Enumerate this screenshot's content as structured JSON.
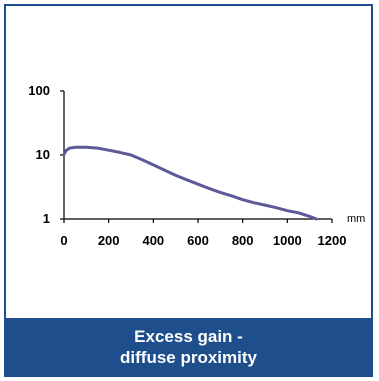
{
  "caption": {
    "line1": "Excess gain -",
    "line2": "diffuse proximity"
  },
  "colors": {
    "border": "#1f4e8c",
    "caption_bg": "#1f4e8c",
    "curve": "#5c5a99"
  },
  "chart_data": {
    "type": "line",
    "title": "",
    "xlabel": "mm",
    "ylabel": "",
    "xlim": [
      0,
      1200
    ],
    "ylim": [
      1,
      100
    ],
    "y_scale": "log",
    "grid": false,
    "x_ticks": [
      0,
      200,
      400,
      600,
      800,
      1000,
      1200
    ],
    "y_ticks": [
      1,
      10,
      100
    ],
    "series": [
      {
        "x": [
          0,
          10,
          25,
          50,
          100,
          150,
          200,
          250,
          300,
          350,
          400,
          450,
          500,
          550,
          600,
          650,
          700,
          750,
          800,
          850,
          900,
          950,
          1000,
          1050,
          1100,
          1130
        ],
        "y": [
          10.2,
          11.8,
          12.8,
          13.2,
          13.2,
          12.8,
          11.9,
          11.0,
          10.0,
          8.4,
          7.0,
          5.8,
          4.8,
          4.1,
          3.5,
          3.0,
          2.6,
          2.3,
          2.0,
          1.8,
          1.65,
          1.5,
          1.35,
          1.25,
          1.1,
          1.0
        ]
      }
    ]
  }
}
